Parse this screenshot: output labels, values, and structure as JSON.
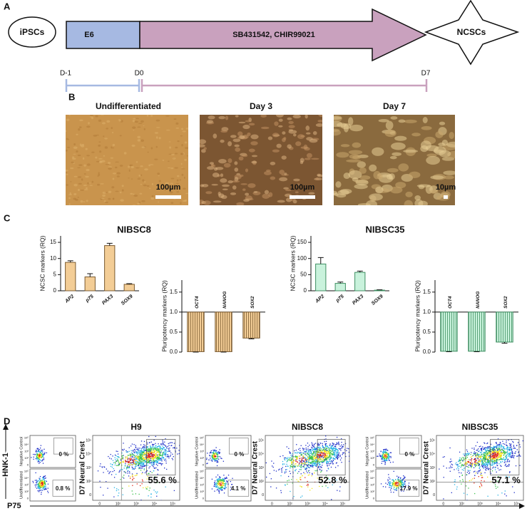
{
  "figure": {
    "A": {
      "label": "A",
      "start": "iPSCs",
      "stage1": "E6",
      "stage2": "SB431542, CHIR99021",
      "end": "NCSCs",
      "days": [
        "D-1",
        "D0",
        "D7"
      ]
    },
    "B": {
      "label": "B",
      "images": [
        {
          "title": "Undifferentiated",
          "scale": "100µm"
        },
        {
          "title": "Day 3",
          "scale": "100µm"
        },
        {
          "title": "Day 7",
          "scale": "10µm"
        }
      ]
    },
    "C": {
      "label": "C"
    },
    "D": {
      "label": "D",
      "y_axis": "HNK-1",
      "x_axis": "P75",
      "tick_labels": [
        "0",
        "10²",
        "10³",
        "10⁴",
        "10⁵"
      ],
      "groups": [
        {
          "title": "H9",
          "negative": {
            "label": "Negative Control",
            "percent": "0 %"
          },
          "undifferentiated": {
            "label": "Undifferentiated",
            "percent": "0.8 %"
          },
          "neural_crest": {
            "label": "D7 Neural Crest",
            "percent": "55.6 %"
          }
        },
        {
          "title": "NIBSC8",
          "negative": {
            "label": "Negative Control",
            "percent": "0 %"
          },
          "undifferentiated": {
            "label": "Undifferentiated",
            "percent": "4.1 %"
          },
          "neural_crest": {
            "label": "D7 Neural Crest",
            "percent": "52.8 %"
          }
        },
        {
          "title": "NIBSC35",
          "negative": {
            "label": "Negative Control",
            "percent": "0 %"
          },
          "undifferentiated": {
            "label": "Undifferentiated",
            "percent": "17.9 %"
          },
          "neural_crest": {
            "label": "D7 Neural Crest",
            "percent": "57.1 %"
          }
        }
      ]
    }
  },
  "chart_data": [
    {
      "type": "bar",
      "title": "NIBSC8",
      "ylabel": "NCSC markers (RQ)",
      "categories": [
        "AP2",
        "p75",
        "PAX3",
        "SOX9"
      ],
      "values": [
        8.8,
        4.3,
        14,
        2
      ],
      "errors": [
        0.5,
        1,
        0.7,
        0.2
      ],
      "ylim": [
        0,
        17
      ],
      "yticks": [
        0,
        5,
        10,
        15
      ],
      "color": "#f3cd96",
      "edge": "#7a5a30",
      "hatch": false
    },
    {
      "type": "bar",
      "ylabel": "Pluripotency markers (RQ)",
      "categories": [
        "OCT4",
        "NANOG",
        "SOX2"
      ],
      "values": [
        0.01,
        0.01,
        0.35
      ],
      "errors": [
        0.01,
        0.01,
        0.02
      ],
      "baseline": 1,
      "ylim": [
        0,
        1.8
      ],
      "yticks": [
        {
          "value": 0,
          "label": "0.0"
        },
        0.5,
        {
          "value": 1,
          "label": "1.0"
        },
        1.5
      ],
      "color": "#f3cd96",
      "edge": "#7a5a30",
      "hatch": true
    },
    {
      "type": "bar",
      "title": "NIBSC35",
      "ylabel": "NCSC markers (RQ)",
      "categories": [
        "AP2",
        "p75",
        "PAX3",
        "SOX9"
      ],
      "values": [
        83,
        23,
        57,
        2
      ],
      "errors": [
        20,
        4,
        4,
        1
      ],
      "ylim": [
        0,
        170
      ],
      "yticks": [
        0,
        50,
        100,
        150
      ],
      "color": "#c9f2dc",
      "edge": "#3f8f62",
      "hatch": false
    },
    {
      "type": "bar",
      "ylabel": "Pluripotency markers (RQ)",
      "categories": [
        "OCT4",
        "NANOG",
        "SOX2"
      ],
      "values": [
        0.02,
        0.02,
        0.25
      ],
      "errors": [
        0.01,
        0.01,
        0.03
      ],
      "baseline": 1,
      "ylim": [
        0,
        1.8
      ],
      "yticks": [
        {
          "value": 0,
          "label": "0.0"
        },
        0.5,
        {
          "value": 1,
          "label": "1.0"
        },
        1.5
      ],
      "color": "#c9f2dc",
      "edge": "#3f8f62",
      "hatch": true
    }
  ]
}
